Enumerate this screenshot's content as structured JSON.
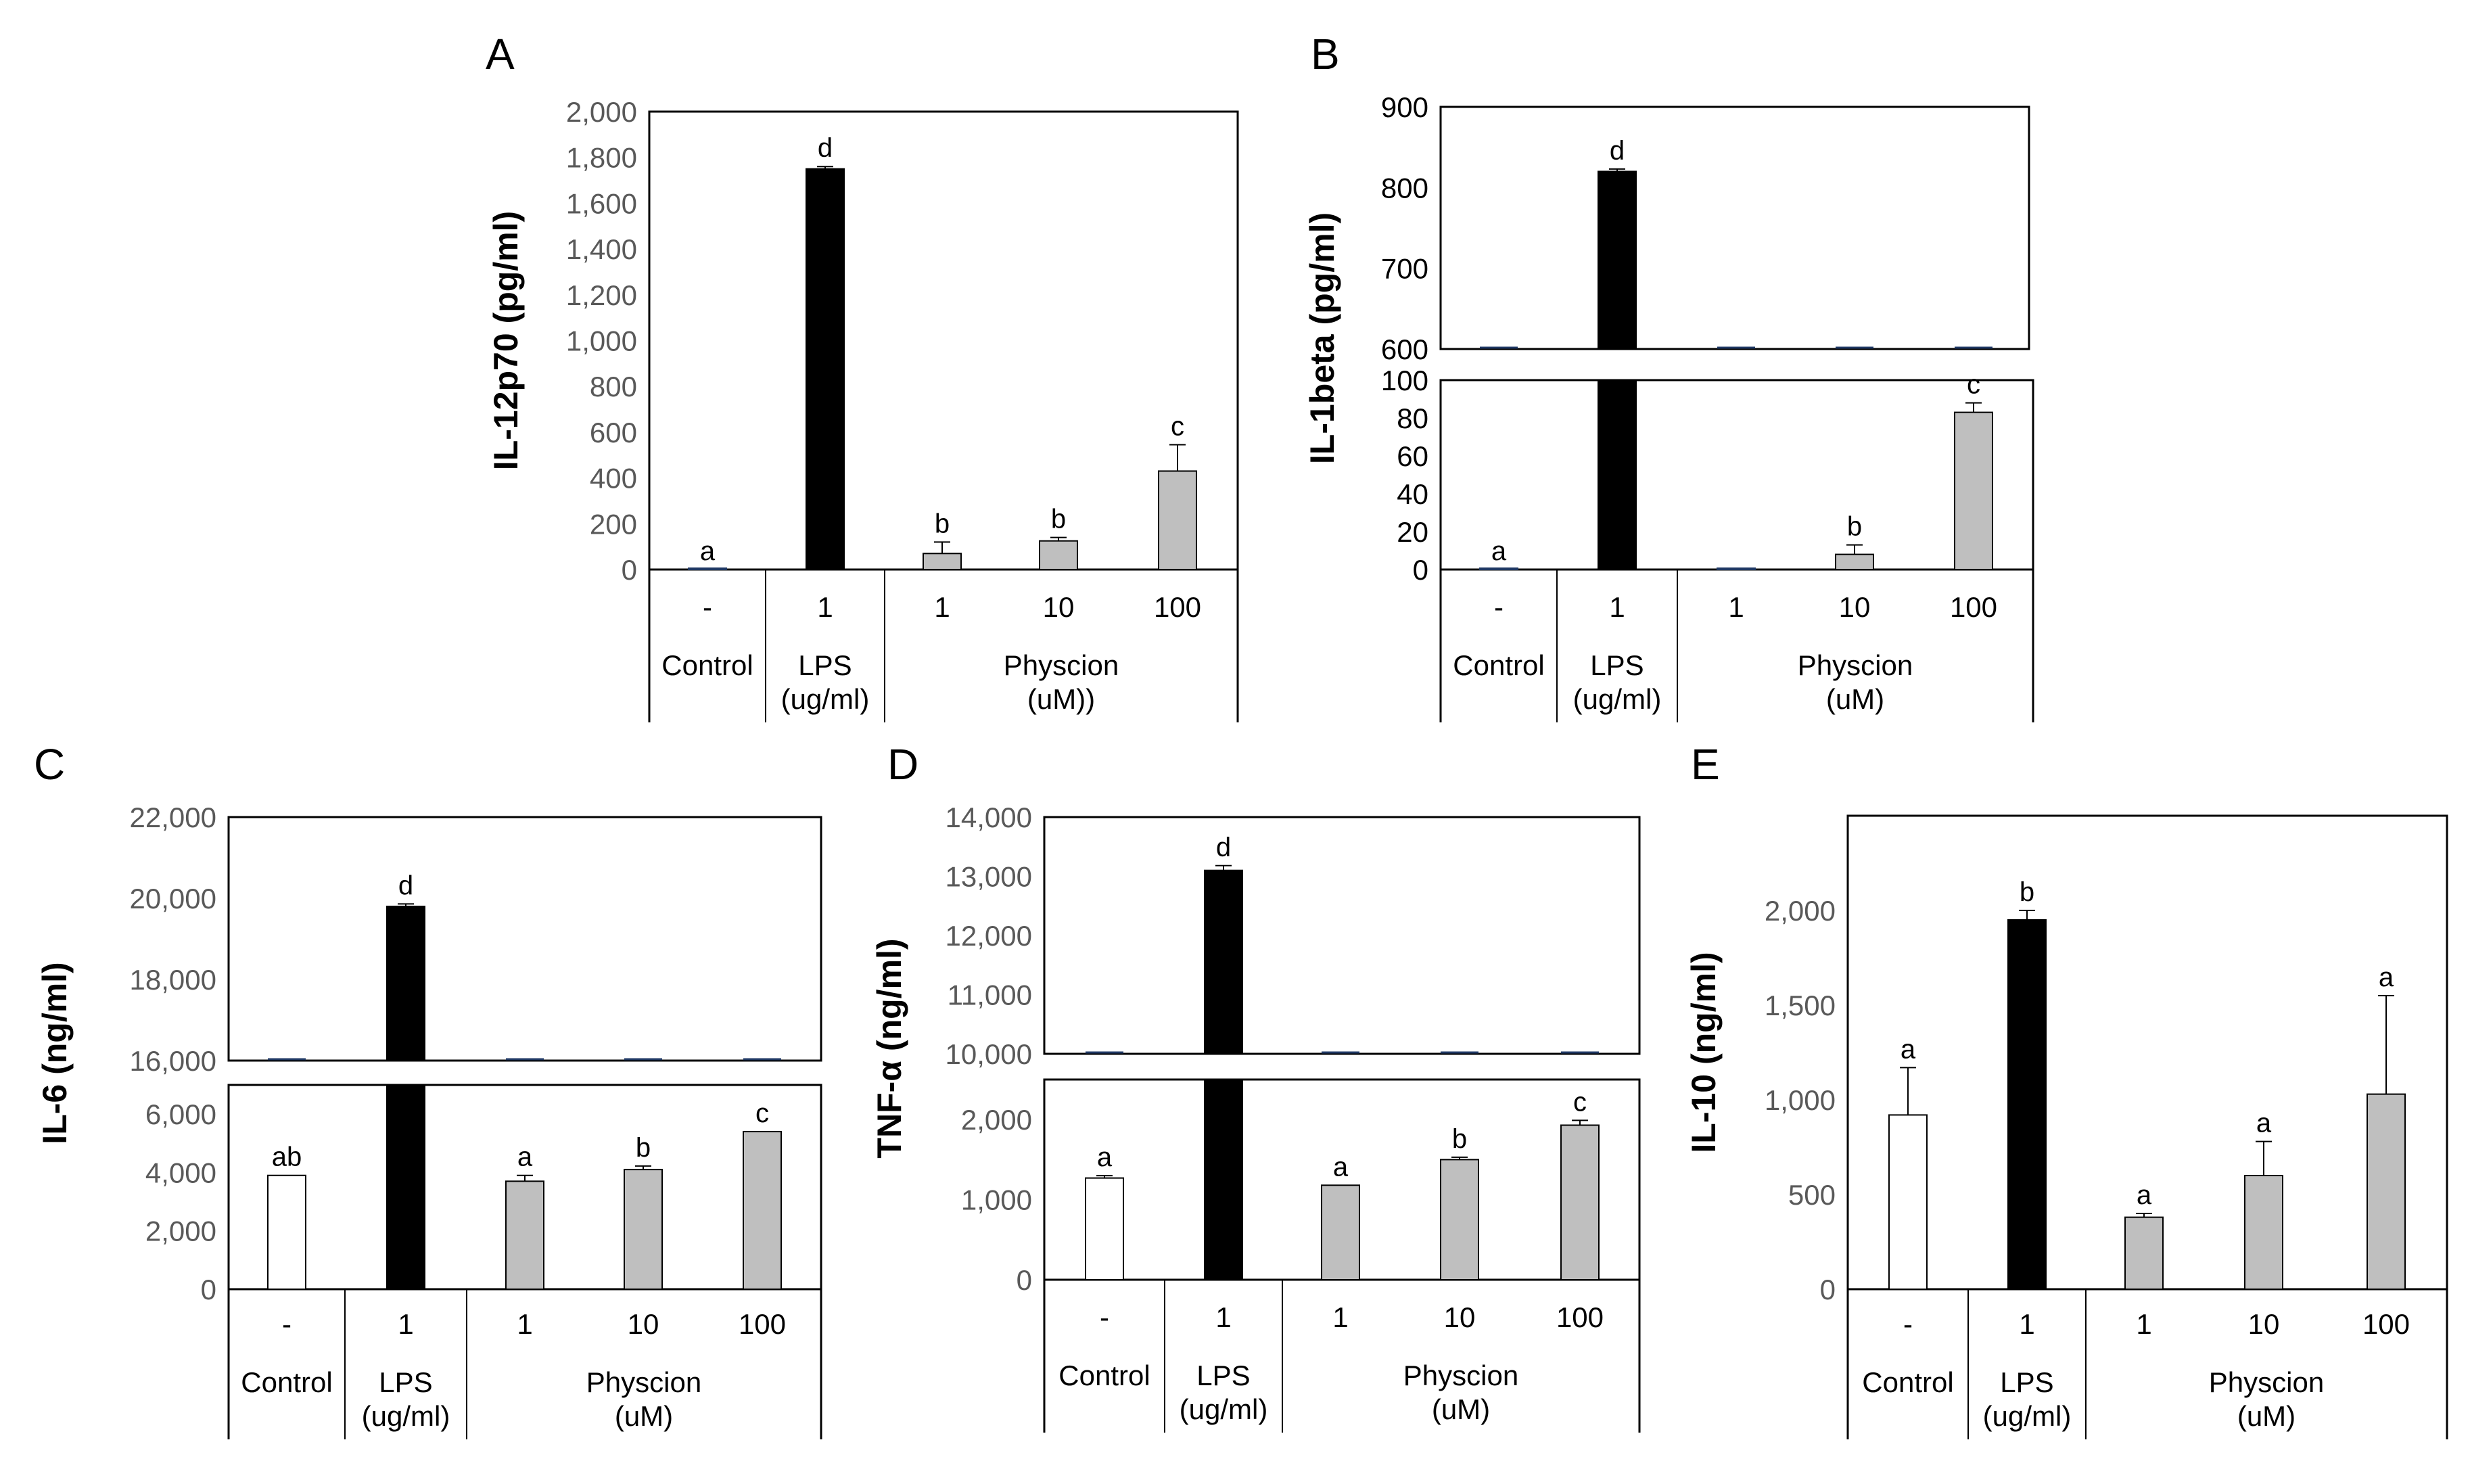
{
  "colors": {
    "control": "#ffffff",
    "lps": "#000000",
    "physcion": "#bfbfbf",
    "axis": "#000000",
    "tick_text": "#595959"
  },
  "chart_data": [
    {
      "panel": "A",
      "type": "bar",
      "ylabel": "IL-12p70 (pg/ml)",
      "ylim": [
        0,
        2000
      ],
      "yticks": [
        "0",
        "200",
        "400",
        "600",
        "800",
        "1,000",
        "1,200",
        "1,400",
        "1,600",
        "1,800",
        "2,000"
      ],
      "categories": [
        "-",
        "1",
        "1",
        "10",
        "100"
      ],
      "groups": [
        {
          "label": "Control",
          "span": 1
        },
        {
          "label": "LPS (ug/ml)",
          "span": 1
        },
        {
          "label": "Physcion (uM))",
          "span": 3
        }
      ],
      "values": [
        0,
        1750,
        70,
        125,
        430
      ],
      "errors": [
        0,
        10,
        50,
        15,
        115
      ],
      "letters": [
        "a",
        "d",
        "b",
        "b",
        "c"
      ]
    },
    {
      "panel": "B",
      "type": "bar",
      "ylabel": "IL-1beta (pg/ml)",
      "ylim_lower": [
        0,
        100
      ],
      "ylim_upper": [
        600,
        900
      ],
      "yticks_lower": [
        "0",
        "20",
        "40",
        "60",
        "80",
        "100"
      ],
      "yticks_upper": [
        "600",
        "700",
        "800",
        "900"
      ],
      "categories": [
        "-",
        "1",
        "1",
        "10",
        "100"
      ],
      "groups": [
        {
          "label": "Control",
          "span": 1
        },
        {
          "label": "LPS (ug/ml)",
          "span": 1
        },
        {
          "label": "Physcion (uM)",
          "span": 3
        }
      ],
      "values": [
        0,
        820,
        0,
        8,
        83
      ],
      "errors": [
        0,
        3,
        0,
        5,
        5
      ],
      "letters": [
        "a",
        "d",
        "",
        "b",
        "c"
      ]
    },
    {
      "panel": "C",
      "type": "bar",
      "ylabel": "IL-6 (ng/ml)",
      "ylim_lower": [
        0,
        7000
      ],
      "ylim_upper": [
        16000,
        22000
      ],
      "yticks_lower": [
        "0",
        "2,000",
        "4,000",
        "6,000"
      ],
      "yticks_upper": [
        "16,000",
        "18,000",
        "20,000",
        "22,000"
      ],
      "categories": [
        "-",
        "1",
        "1",
        "10",
        "100"
      ],
      "groups": [
        {
          "label": "Control",
          "span": 1
        },
        {
          "label": "LPS (ug/ml)",
          "span": 1
        },
        {
          "label": "Physcion (uM)",
          "span": 3
        }
      ],
      "values": [
        3900,
        19800,
        3700,
        4100,
        5400
      ],
      "errors": [
        0,
        60,
        200,
        120,
        0
      ],
      "letters": [
        "ab",
        "d",
        "a",
        "b",
        "c"
      ]
    },
    {
      "panel": "D",
      "type": "bar",
      "ylabel": "TNF-α (ng/ml)",
      "ylim_lower": [
        0,
        2500
      ],
      "ylim_upper": [
        10000,
        14000
      ],
      "yticks_lower": [
        "0",
        "1,000",
        "2,000"
      ],
      "yticks_upper": [
        "10,000",
        "11,000",
        "12,000",
        "13,000",
        "14,000"
      ],
      "categories": [
        "-",
        "1",
        "1",
        "10",
        "100"
      ],
      "groups": [
        {
          "label": "Control",
          "span": 1
        },
        {
          "label": "LPS (ug/ml)",
          "span": 1
        },
        {
          "label": "Physcion (uM)",
          "span": 3
        }
      ],
      "values": [
        1270,
        13100,
        1180,
        1500,
        1930
      ],
      "errors": [
        30,
        80,
        0,
        30,
        60
      ],
      "letters": [
        "a",
        "d",
        "a",
        "b",
        "c"
      ]
    },
    {
      "panel": "E",
      "type": "bar",
      "ylabel": "IL-10 (ng/ml)",
      "ylim": [
        0,
        2500
      ],
      "yticks": [
        "0",
        "500",
        "1,000",
        "1,500",
        "2,000"
      ],
      "categories": [
        "-",
        "1",
        "1",
        "10",
        "100"
      ],
      "groups": [
        {
          "label": "Control",
          "span": 1
        },
        {
          "label": "LPS (ug/ml)",
          "span": 1
        },
        {
          "label": "Physcion (uM)",
          "span": 3
        }
      ],
      "values": [
        920,
        1950,
        380,
        600,
        1030
      ],
      "errors": [
        250,
        50,
        20,
        180,
        520
      ],
      "letters": [
        "a",
        "b",
        "a",
        "a",
        "a"
      ]
    }
  ]
}
